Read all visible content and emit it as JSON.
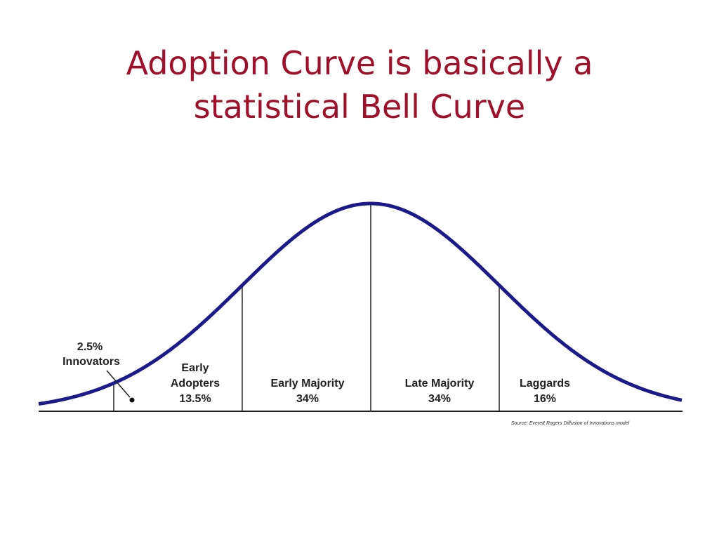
{
  "slide": {
    "title_line1": "Adoption Curve is basically a",
    "title_line2": "statistical Bell Curve"
  },
  "colors": {
    "title": "#a0102a",
    "curve": "#1a1a8c",
    "lines": "#222222"
  },
  "chart_data": {
    "type": "area",
    "title": "",
    "xlabel": "",
    "ylabel": "",
    "curve": "bell",
    "series": [
      {
        "label": "2.5%",
        "name": "Innovators"
      },
      {
        "label": "Early Adopters",
        "value": "13.5%"
      },
      {
        "label": "Early Majority",
        "value": "34%"
      },
      {
        "label": "Late Majority",
        "value": "34%"
      },
      {
        "label": "Laggards",
        "value": "16%"
      }
    ],
    "segments": [
      {
        "name": "Innovators",
        "value": 2.5,
        "value_label": "2.5%",
        "line1": "2.5%",
        "line2": "Innovators",
        "line3": ""
      },
      {
        "name": "Early Adopters",
        "value": 13.5,
        "value_label": "13.5%",
        "line1": "Early",
        "line2": "Adopters",
        "line3": "13.5%"
      },
      {
        "name": "Early Majority",
        "value": 34,
        "value_label": "34%",
        "line1": "Early Majority",
        "line2": "34%",
        "line3": ""
      },
      {
        "name": "Late Majority",
        "value": 34,
        "value_label": "34%",
        "line1": "Late Majority",
        "line2": "34%",
        "line3": ""
      },
      {
        "name": "Laggards",
        "value": 16,
        "value_label": "16%",
        "line1": "Laggards",
        "line2": "16%",
        "line3": ""
      }
    ],
    "boundaries_sd": [
      -2,
      -1,
      0,
      1
    ],
    "source_note": "Source: Everett Rogers Diffusion of Innovations model"
  }
}
